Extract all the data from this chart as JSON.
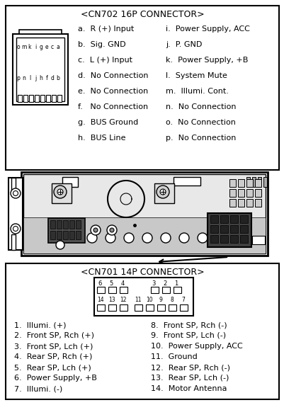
{
  "cn702_title": "<CN702 16P CONNECTOR>",
  "cn702_left_labels": [
    "a.  R (+) Input",
    "b.  Sig. GND",
    "c.  L (+) Input",
    "d.  No Connection",
    "e.  No Connection",
    "f.   No Connection",
    "g.  BUS Ground",
    "h.  BUS Line"
  ],
  "cn702_right_labels": [
    "i.  Power Supply, ACC",
    "j.  P. GND",
    "k.  Power Supply, +B",
    "l.  System Mute",
    "m.  Illumi. Cont.",
    "n.  No Connection",
    "o.  No Connection",
    "p.  No Connection"
  ],
  "cn701_title": "<CN701 14P CONNECTOR>",
  "cn701_left_items": [
    "1.  Illumi. (+)",
    "2.  Front SP, Rch (+)",
    "3.  Front SP, Lch (+)",
    "4.  Rear SP, Rch (+)",
    "5.  Rear SP, Lch (+)",
    "6.  Power Supply, +B",
    "7.  Illumi. (-)"
  ],
  "cn701_right_items": [
    "8.  Front SP, Rch (-)",
    "9.  Front SP, Lch (-)",
    "10.  Power Supply, ACC",
    "11.  Ground",
    "12.  Rear SP, Rch (-)",
    "13.  Rear SP, Lch (-)",
    "14.  Motor Antenna"
  ],
  "connector_pin_rows_top": [
    "o",
    "m",
    "k",
    "i",
    "g",
    "e",
    "c",
    "a"
  ],
  "connector_pin_rows_bot": [
    "p",
    "n",
    "l",
    "j",
    "h",
    "f",
    "d",
    "b"
  ]
}
